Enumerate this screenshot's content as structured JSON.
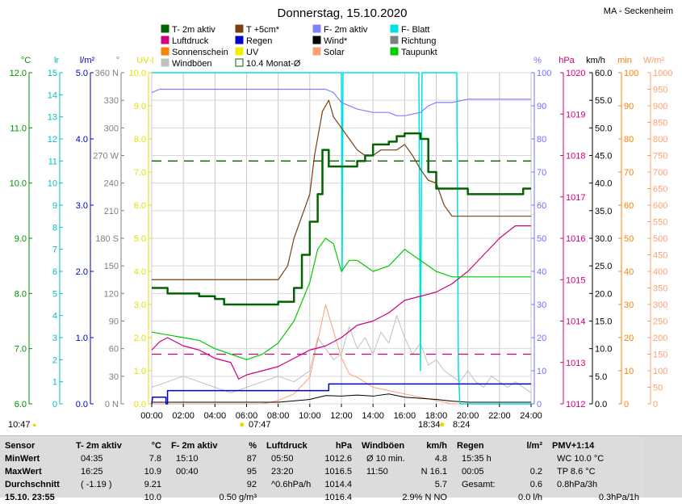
{
  "title": "Donnerstag, 15.10.2020",
  "station": "MA - Seckenheim",
  "legend": [
    {
      "label": "T- 2m aktiv",
      "color": "#006400"
    },
    {
      "label": "T +5cm*",
      "color": "#7b3f10"
    },
    {
      "label": "F- 2m aktiv",
      "color": "#8080ff"
    },
    {
      "label": "F- Blatt",
      "color": "#00e0e0"
    },
    {
      "label": "Luftdruck",
      "color": "#d0007a"
    },
    {
      "label": "Regen",
      "color": "#0000cc"
    },
    {
      "label": "Wind*",
      "color": "#000000"
    },
    {
      "label": "Richtung",
      "color": "#808080"
    },
    {
      "label": "Sonnenschein",
      "color": "#ff8000"
    },
    {
      "label": "UV",
      "color": "#f0f000"
    },
    {
      "label": "Solar",
      "color": "#ffa070"
    },
    {
      "label": "Taupunkt",
      "color": "#00cc00"
    },
    {
      "label": "Windböen",
      "color": "#c0c0c0"
    },
    {
      "label": "10.4 Monat-Ø",
      "color": "#006400"
    }
  ],
  "axis_units": {
    "temp": "°C",
    "lr": "lr",
    "precip": "l/m²",
    "dir": "°",
    "uv": "UV-I",
    "humidity": "%",
    "pressure": "hPa",
    "wind": "km/h",
    "minutes": "min",
    "solar": "W/m²"
  },
  "axis_colors": {
    "temp": "#009000",
    "lr": "#00c0c0",
    "precip": "#0000c0",
    "dir": "#808080",
    "uv": "#e0e000",
    "humidity": "#7070ff",
    "pressure": "#d0007a",
    "wind": "#000000",
    "minutes": "#ff8000",
    "solar": "#ffa070"
  },
  "axes": {
    "temp_ticks": [
      "12.0",
      "11.0",
      "10.0",
      "9.0",
      "8.0",
      "7.0",
      "6.0"
    ],
    "lr_ticks": [
      "15",
      "14",
      "13",
      "12",
      "11",
      "10",
      "9",
      "8",
      "7",
      "6",
      "5",
      "4",
      "3",
      "2",
      "1",
      "0"
    ],
    "precip_ticks": [
      "5.0",
      "4.0",
      "3.0",
      "2.0",
      "1.0",
      "0.0"
    ],
    "dir_ticks": [
      "360 N",
      "330",
      "300",
      "270 W",
      "240",
      "210",
      "180 S",
      "150",
      "120",
      "90",
      "60",
      "30",
      "0 N"
    ],
    "uv_ticks": [
      "10.0",
      "9.0",
      "8.0",
      "7.0",
      "6.0",
      "5.0",
      "4.0",
      "3.0",
      "2.0",
      "1.0",
      "0.0"
    ],
    "humidity_ticks": [
      "100",
      "90",
      "80",
      "70",
      "60",
      "50",
      "40",
      "30",
      "20",
      "10",
      "0"
    ],
    "pressure_ticks": [
      "1020",
      "1019",
      "1018",
      "1017",
      "1016",
      "1015",
      "1014",
      "1013",
      "1012"
    ],
    "wind_ticks": [
      "60.0",
      "55.0",
      "50.0",
      "45.0",
      "40.0",
      "35.0",
      "30.0",
      "25.0",
      "20.0",
      "15.0",
      "10.0",
      "5.0",
      "0.0"
    ],
    "minutes_ticks": [
      "100",
      "90",
      "80",
      "70",
      "60",
      "50",
      "40",
      "30",
      "20",
      "10",
      "0"
    ],
    "solar_ticks": [
      "1000",
      "950",
      "900",
      "850",
      "800",
      "750",
      "700",
      "650",
      "600",
      "550",
      "500",
      "450",
      "400",
      "350",
      "300",
      "250",
      "200",
      "150",
      "100",
      "50",
      "0"
    ],
    "time_ticks": [
      "00:00",
      "02:00",
      "04:00",
      "06:00",
      "08:00",
      "10:00",
      "12:00",
      "14:00",
      "16:00",
      "18:00",
      "20:00",
      "22:00",
      "24:00"
    ]
  },
  "events": {
    "moonset": "10:47",
    "sunrise": "07:47",
    "sunset": "18:34",
    "moonrise": "8:24"
  },
  "chart_data": {
    "type": "line",
    "x_unit": "hours",
    "xlim": [
      0,
      24
    ],
    "series": [
      {
        "name": "T- 2m aktiv",
        "unit": "°C",
        "ylim": [
          6,
          12
        ],
        "x": [
          0,
          1,
          2,
          3,
          4,
          4.58,
          5,
          6,
          7,
          8,
          9,
          9.5,
          10,
          10.5,
          10.8,
          11.2,
          12,
          13,
          13.5,
          14,
          15,
          15.5,
          16,
          16.42,
          17,
          17.5,
          18,
          19,
          20,
          21,
          22,
          23,
          23.5,
          24
        ],
        "y": [
          8.1,
          8.0,
          8.0,
          7.95,
          7.9,
          7.8,
          7.8,
          7.8,
          7.8,
          7.85,
          8.1,
          8.7,
          9.3,
          9.8,
          10.6,
          10.3,
          10.3,
          10.4,
          10.5,
          10.7,
          10.75,
          10.85,
          10.9,
          10.9,
          10.8,
          10.2,
          9.9,
          9.9,
          9.8,
          9.8,
          9.8,
          9.8,
          9.9,
          9.9
        ]
      },
      {
        "name": "T +5cm*",
        "unit": "°C",
        "ylim": [
          6,
          12
        ],
        "x": [
          0,
          2,
          4,
          6,
          8,
          8.6,
          9,
          9.5,
          10,
          10.3,
          10.8,
          11.2,
          11.5,
          12,
          12.5,
          13,
          13.5,
          14,
          14.5,
          15,
          15.5,
          16,
          16.5,
          17,
          17.5,
          18,
          18.5,
          19,
          20,
          22,
          24
        ],
        "y": [
          8.25,
          8.25,
          8.25,
          8.25,
          8.25,
          8.5,
          9.0,
          9.4,
          9.8,
          10.5,
          11.3,
          11.5,
          11.2,
          11.0,
          10.8,
          10.6,
          10.5,
          10.5,
          10.6,
          10.6,
          10.6,
          10.7,
          10.5,
          10.25,
          10.05,
          10.0,
          9.6,
          9.4,
          9.4,
          9.4,
          9.4
        ]
      },
      {
        "name": "F- 2m aktiv",
        "unit": "%",
        "ylim": [
          0,
          100
        ],
        "x": [
          0,
          0.5,
          1,
          3,
          5,
          7,
          9,
          11,
          11.5,
          12,
          13,
          14,
          15,
          15.5,
          16,
          17,
          17.5,
          18,
          19,
          20,
          22,
          24
        ],
        "y": [
          94,
          95,
          95,
          95,
          95,
          95,
          95,
          95,
          94,
          91,
          89,
          88,
          88,
          87,
          87,
          88,
          90,
          91,
          91,
          92,
          92,
          92
        ]
      },
      {
        "name": "Taupunkt",
        "unit": "°C",
        "ylim": [
          6,
          12
        ],
        "x": [
          0,
          1,
          2,
          3,
          4,
          5,
          6,
          7,
          8,
          9,
          10,
          10.5,
          11,
          11.5,
          12,
          12.5,
          13,
          14,
          15,
          16,
          17,
          18,
          19,
          20,
          21,
          22,
          23,
          24
        ],
        "y": [
          7.3,
          7.25,
          7.2,
          7.15,
          7.0,
          6.9,
          6.8,
          6.9,
          7.1,
          7.5,
          8.2,
          8.8,
          9.0,
          8.9,
          8.4,
          8.6,
          8.6,
          8.4,
          8.5,
          8.8,
          8.6,
          8.4,
          8.3,
          8.3,
          8.3,
          8.3,
          8.3,
          8.3
        ]
      },
      {
        "name": "Luftdruck",
        "unit": "hPa",
        "ylim": [
          1012,
          1020
        ],
        "x": [
          0,
          0.5,
          1,
          2,
          3,
          4,
          5,
          5.5,
          6,
          7,
          8,
          8.5,
          9,
          10,
          11,
          12,
          13,
          14,
          15,
          16,
          17,
          18,
          19,
          20,
          21,
          22,
          23,
          23.5,
          24
        ],
        "y": [
          1013.3,
          1013.5,
          1013.6,
          1013.4,
          1013.3,
          1013.1,
          1013.0,
          1012.6,
          1012.7,
          1012.8,
          1012.9,
          1013.0,
          1013.1,
          1013.3,
          1013.4,
          1013.6,
          1013.9,
          1014.0,
          1014.2,
          1014.5,
          1014.6,
          1014.7,
          1014.9,
          1015.2,
          1015.6,
          1016.0,
          1016.3,
          1016.3,
          1016.3
        ]
      },
      {
        "name": "F- Blatt",
        "unit": "%",
        "ylim": [
          0,
          100
        ],
        "x": [
          0,
          12.0,
          12.05,
          12.1,
          12.2,
          16.9,
          17.0,
          17.1,
          17.2,
          19.3,
          19.4,
          19.5,
          19.6,
          24
        ],
        "y": [
          100,
          100,
          40,
          100,
          100,
          100,
          10,
          100,
          100,
          100,
          10,
          0,
          0,
          0
        ]
      },
      {
        "name": "Regen",
        "unit": "l/m²",
        "ylim": [
          0,
          5
        ],
        "x": [
          0,
          0.05,
          0.05,
          0.9,
          0.9,
          1.0,
          1.0,
          11.2,
          11.2,
          24
        ],
        "y": [
          0,
          0.1,
          0.1,
          0.1,
          0,
          0,
          0.2,
          0.2,
          0.3,
          0.3
        ]
      },
      {
        "name": "Windböen",
        "unit": "km/h",
        "ylim": [
          0,
          60
        ],
        "x": [
          0,
          1,
          2,
          3,
          4,
          5,
          6,
          7,
          8,
          9,
          10,
          10.5,
          11,
          11.5,
          12,
          12.5,
          13,
          13.5,
          14,
          14.5,
          15,
          15.5,
          16,
          16.5,
          17,
          17.5,
          18,
          18.5,
          19,
          19.5,
          20,
          20.5,
          21,
          21.5,
          22,
          22.5,
          23,
          23.5,
          24
        ],
        "y": [
          3,
          4,
          5,
          4,
          3,
          2,
          3,
          4,
          5,
          4,
          6,
          12,
          10,
          8,
          9,
          14,
          10,
          12,
          9,
          13,
          11,
          16,
          12,
          9,
          11,
          7,
          8,
          6,
          5,
          4,
          6,
          4,
          3,
          5,
          4,
          3,
          4,
          3,
          2
        ]
      },
      {
        "name": "Wind*",
        "unit": "km/h",
        "ylim": [
          0,
          60
        ],
        "x": [
          0,
          2,
          4,
          6,
          8,
          10,
          11,
          12,
          13,
          14,
          15,
          16,
          17,
          18,
          19,
          20,
          22,
          24
        ],
        "y": [
          0.3,
          0.3,
          0.3,
          0.3,
          0.3,
          0.8,
          1.5,
          1.4,
          1.6,
          1.4,
          1.8,
          1.2,
          1.0,
          0.8,
          0.5,
          0.3,
          0.3,
          0.3
        ]
      },
      {
        "name": "Solar",
        "unit": "W/m²",
        "ylim": [
          0,
          1000
        ],
        "x": [
          0,
          7,
          8,
          9,
          10,
          10.5,
          11,
          11.5,
          12,
          12.5,
          13,
          14,
          15,
          16,
          17,
          18,
          19,
          24
        ],
        "y": [
          0,
          0,
          10,
          30,
          80,
          190,
          300,
          220,
          140,
          90,
          80,
          50,
          40,
          30,
          20,
          10,
          0,
          0
        ]
      },
      {
        "name": "10.4 Monat-Ø",
        "unit": "°C",
        "ylim": [
          6,
          12
        ],
        "x": [
          0,
          24
        ],
        "y": [
          10.4,
          10.4
        ]
      },
      {
        "name": "Luftdruck-Ø",
        "unit": "hPa",
        "ylim": [
          1012,
          1020
        ],
        "x": [
          0,
          24
        ],
        "y": [
          1013.2,
          1013.2
        ]
      }
    ]
  },
  "stats": {
    "cols": [
      {
        "h1": "Sensor",
        "h2": "",
        "rows": [
          [
            "MinWert",
            ""
          ],
          [
            "MaxWert",
            ""
          ],
          [
            "Durchschnitt",
            ""
          ]
        ],
        "foot": "15.10. 23:55"
      },
      {
        "h1": "T- 2m aktiv",
        "h2": "°C",
        "rows": [
          [
            "04:35",
            "7.8"
          ],
          [
            "16:25",
            "10.9"
          ],
          [
            "( -1.19 )",
            "9.21"
          ]
        ],
        "foot": "10.0"
      },
      {
        "h1": "F- 2m aktiv",
        "h2": "%",
        "rows": [
          [
            "15:10",
            "87"
          ],
          [
            "00:40",
            "95"
          ],
          [
            "",
            "92"
          ]
        ],
        "foot": "0.50 g/m³"
      },
      {
        "h1": "Luftdruck",
        "h2": "hPa",
        "rows": [
          [
            "05:50",
            "1012.6"
          ],
          [
            "23:20",
            "1016.5"
          ],
          [
            "^0.6hPa/h",
            "1014.4"
          ]
        ],
        "foot": "1016.4"
      },
      {
        "h1": "Windböen",
        "h2": "km/h",
        "rows": [
          [
            "Ø 10 min.",
            "4.8"
          ],
          [
            "11:50",
            "N 16.1"
          ],
          [
            "",
            "5.7"
          ]
        ],
        "foot": "2.9% N NO"
      },
      {
        "h1": "Regen",
        "h2": "l/m²",
        "rows": [
          [
            "15:35 h",
            ""
          ],
          [
            "00:05",
            "0.2"
          ],
          [
            "Gesamt:",
            "0.6"
          ]
        ],
        "foot": "0.0 l/h"
      },
      {
        "h1": "PMV+1:14",
        "h2": "",
        "rows": [
          [
            "WC 10.0 °C",
            ""
          ],
          [
            "TP 8.6 °C",
            ""
          ],
          [
            "0.8hPa/3h",
            ""
          ]
        ],
        "foot": "0.3hPa/1h"
      }
    ]
  }
}
